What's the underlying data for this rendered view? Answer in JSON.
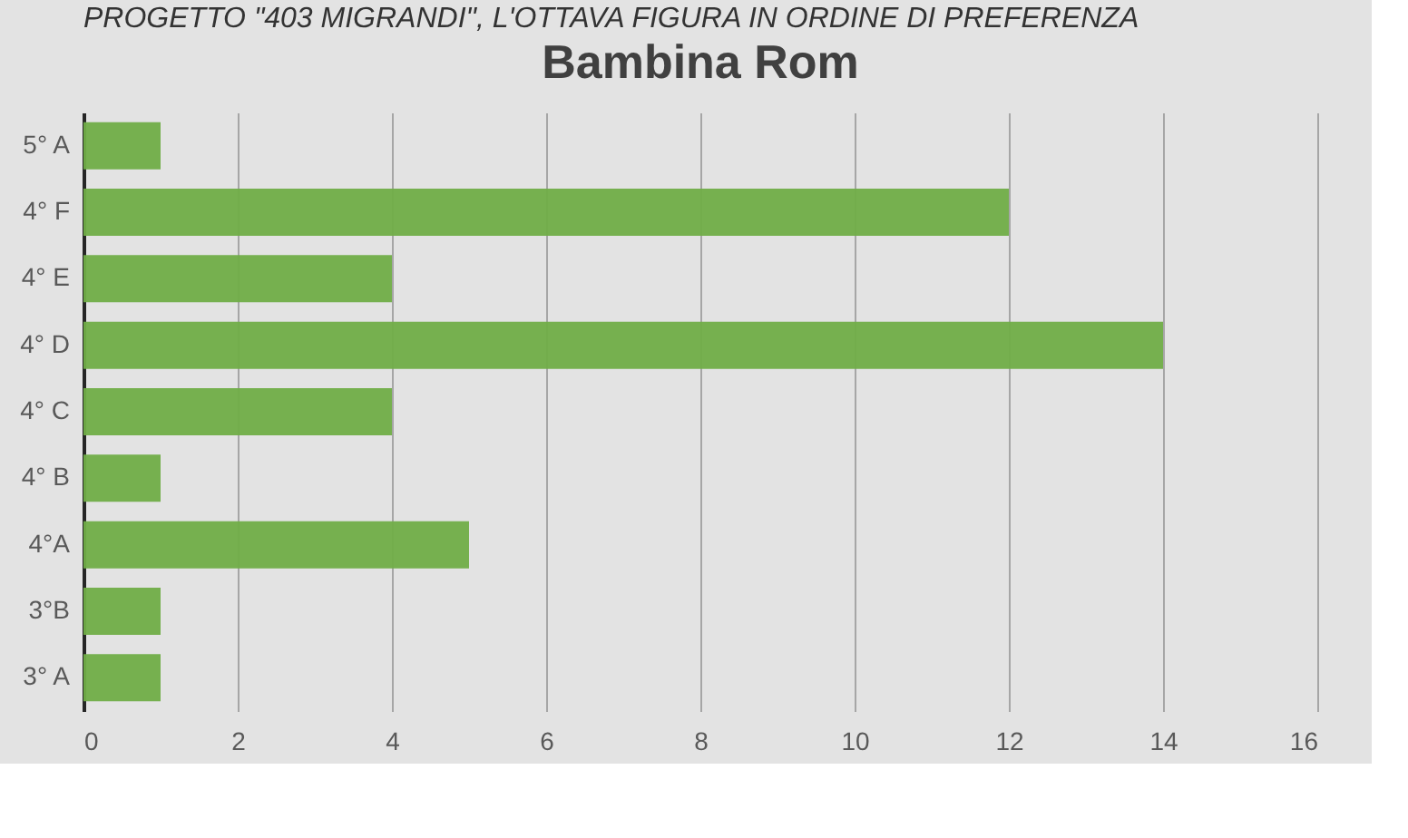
{
  "chart_data": {
    "type": "bar",
    "orientation": "horizontal",
    "title": "Bambina Rom",
    "annotations": [
      "PROGETTO \"403 MIGRANDI\", L'OTTAVA FIGURA IN ORDINE DI PREFERENZA"
    ],
    "categories": [
      "5° A",
      "4° F",
      "4° E",
      "4° D",
      "4° C",
      "4° B",
      "4°A",
      "3°B",
      "3° A"
    ],
    "values": [
      1,
      12,
      4,
      14,
      4,
      1,
      5,
      1,
      1
    ],
    "color": "#70ad47",
    "xlim": [
      0,
      16
    ],
    "xticks": [
      0,
      2,
      4,
      6,
      8,
      10,
      12,
      14,
      16
    ],
    "grid": "x"
  }
}
